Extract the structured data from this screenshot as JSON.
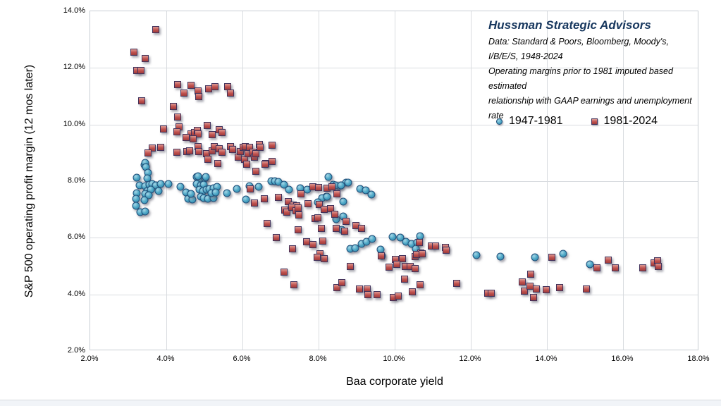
{
  "header": {
    "title": "Hussman Strategic Advisors",
    "subtitle_lines": [
      "Data: Standard & Poors, Bloomberg, Moody's, I/B/E/S, 1948-2024",
      "Operating margins prior to 1981 imputed based estimated",
      "relationship with GAAP earnings and unemployment rate"
    ],
    "title_color": "#17375e"
  },
  "legend": {
    "items": [
      {
        "label": "1947-1981",
        "marker": "circle",
        "color": "#4da7c6"
      },
      {
        "label": "1981-2024",
        "marker": "square",
        "color": "#c0504d"
      }
    ],
    "position": "inside-top"
  },
  "axes": {
    "x": {
      "label": "Baa corporate yield",
      "min": 2,
      "max": 18,
      "tick_values": [
        2,
        4,
        6,
        8,
        10,
        12,
        14,
        16,
        18
      ],
      "tick_labels": [
        "2.0%",
        "4.0%",
        "6.0%",
        "8.0%",
        "10.0%",
        "12.0%",
        "14.0%",
        "16.0%",
        "18.0%"
      ]
    },
    "y": {
      "label": "S&P 500 operating profit margin  (12 mos later)",
      "min": 2,
      "max": 14,
      "tick_values": [
        14,
        12,
        10,
        8,
        6,
        4,
        2
      ],
      "tick_labels": [
        "14.0%",
        "12.0%",
        "10.0%",
        "8.0%",
        "6.0%",
        "4.0%",
        "2.0%"
      ]
    }
  },
  "chart_data": {
    "type": "scatter",
    "title": "Hussman Strategic Advisors",
    "xlabel": "Baa corporate yield",
    "ylabel": "S&P 500 operating profit margin  (12 mos later)",
    "xlim": [
      2,
      18
    ],
    "ylim": [
      2,
      14
    ],
    "grid": true,
    "units": "percent",
    "series": [
      {
        "name": "1947-1981",
        "marker": "circle",
        "color": "#4da7c6",
        "points": [
          [
            3.42,
            8.57
          ],
          [
            3.45,
            8.65
          ],
          [
            3.47,
            8.49
          ],
          [
            3.51,
            8.29
          ],
          [
            3.22,
            8.13
          ],
          [
            3.5,
            8.11
          ],
          [
            3.3,
            7.85
          ],
          [
            3.45,
            7.83
          ],
          [
            3.56,
            7.87
          ],
          [
            3.63,
            7.9
          ],
          [
            3.73,
            7.85
          ],
          [
            3.85,
            7.91
          ],
          [
            4.06,
            7.89
          ],
          [
            3.5,
            7.66
          ],
          [
            3.59,
            7.69
          ],
          [
            3.79,
            7.66
          ],
          [
            3.22,
            7.57
          ],
          [
            3.45,
            7.54
          ],
          [
            3.53,
            7.5
          ],
          [
            3.21,
            7.37
          ],
          [
            3.43,
            7.33
          ],
          [
            3.2,
            7.14
          ],
          [
            3.32,
            6.9
          ],
          [
            3.45,
            6.92
          ],
          [
            4.37,
            7.81
          ],
          [
            4.52,
            7.6
          ],
          [
            4.57,
            7.37
          ],
          [
            4.68,
            7.36
          ],
          [
            4.65,
            7.54
          ],
          [
            4.79,
            8.14
          ],
          [
            4.87,
            8.06
          ],
          [
            5.01,
            8.09
          ],
          [
            4.84,
            8.18
          ],
          [
            5.04,
            8.14
          ],
          [
            4.8,
            7.91
          ],
          [
            4.9,
            7.85
          ],
          [
            4.98,
            7.87
          ],
          [
            4.87,
            7.7
          ],
          [
            4.96,
            7.66
          ],
          [
            5.05,
            7.69
          ],
          [
            5.13,
            7.72
          ],
          [
            5.24,
            7.75
          ],
          [
            5.33,
            7.79
          ],
          [
            4.9,
            7.45
          ],
          [
            4.99,
            7.4
          ],
          [
            5.1,
            7.37
          ],
          [
            5.24,
            7.4
          ],
          [
            5.18,
            7.58
          ],
          [
            5.29,
            7.6
          ],
          [
            5.6,
            7.58
          ],
          [
            5.86,
            7.72
          ],
          [
            6.09,
            7.35
          ],
          [
            6.19,
            7.83
          ],
          [
            6.42,
            7.8
          ],
          [
            6.75,
            8.0
          ],
          [
            6.85,
            8.01
          ],
          [
            6.95,
            7.98
          ],
          [
            7.09,
            7.87
          ],
          [
            7.22,
            7.71
          ],
          [
            7.52,
            7.76
          ],
          [
            7.71,
            7.69
          ],
          [
            8.25,
            8.15
          ],
          [
            8.39,
            7.87
          ],
          [
            8.54,
            7.82
          ],
          [
            8.73,
            7.96
          ],
          [
            8.45,
            7.85
          ],
          [
            8.6,
            7.85
          ],
          [
            8.78,
            7.95
          ],
          [
            9.1,
            7.73
          ],
          [
            9.24,
            7.67
          ],
          [
            9.38,
            7.52
          ],
          [
            8.2,
            7.44
          ],
          [
            8.09,
            7.41
          ],
          [
            8.23,
            7.45
          ],
          [
            7.99,
            7.25
          ],
          [
            8.65,
            7.28
          ],
          [
            8.64,
            6.75
          ],
          [
            8.47,
            6.65
          ],
          [
            8.62,
            6.28
          ],
          [
            8.83,
            5.62
          ],
          [
            8.97,
            5.64
          ],
          [
            9.13,
            5.78
          ],
          [
            9.26,
            5.85
          ],
          [
            9.4,
            5.95
          ],
          [
            9.63,
            5.58
          ],
          [
            9.66,
            5.37
          ],
          [
            9.94,
            6.03
          ],
          [
            10.15,
            6.01
          ],
          [
            10.3,
            5.85
          ],
          [
            10.44,
            5.79
          ],
          [
            10.59,
            5.83
          ],
          [
            10.66,
            6.07
          ],
          [
            10.55,
            5.6
          ],
          [
            12.14,
            5.39
          ],
          [
            12.78,
            5.33
          ],
          [
            13.69,
            5.3
          ],
          [
            14.42,
            5.44
          ],
          [
            15.13,
            5.06
          ]
        ]
      },
      {
        "name": "1981-2024",
        "marker": "square",
        "color": "#c0504d",
        "points": [
          [
            3.73,
            13.35
          ],
          [
            3.15,
            12.56
          ],
          [
            3.45,
            12.33
          ],
          [
            3.23,
            11.9
          ],
          [
            3.33,
            11.9
          ],
          [
            3.35,
            10.83
          ],
          [
            4.29,
            11.4
          ],
          [
            4.64,
            11.38
          ],
          [
            4.47,
            11.11
          ],
          [
            4.84,
            11.19
          ],
          [
            4.85,
            10.99
          ],
          [
            5.12,
            11.25
          ],
          [
            5.27,
            11.34
          ],
          [
            5.61,
            11.33
          ],
          [
            5.68,
            11.1
          ],
          [
            4.19,
            10.64
          ],
          [
            4.29,
            10.26
          ],
          [
            3.92,
            9.85
          ],
          [
            4.34,
            9.92
          ],
          [
            4.28,
            9.75
          ],
          [
            4.65,
            9.67
          ],
          [
            4.74,
            9.72
          ],
          [
            4.82,
            9.8
          ],
          [
            4.84,
            9.67
          ],
          [
            5.07,
            9.97
          ],
          [
            5.21,
            9.65
          ],
          [
            5.38,
            9.81
          ],
          [
            5.46,
            9.72
          ],
          [
            4.7,
            9.5
          ],
          [
            4.51,
            9.54
          ],
          [
            3.63,
            9.16
          ],
          [
            3.86,
            9.2
          ],
          [
            3.51,
            8.99
          ],
          [
            4.27,
            9.02
          ],
          [
            4.54,
            9.04
          ],
          [
            4.61,
            9.07
          ],
          [
            4.84,
            9.23
          ],
          [
            4.85,
            9.04
          ],
          [
            5.05,
            8.96
          ],
          [
            5.1,
            8.78
          ],
          [
            5.2,
            9.07
          ],
          [
            5.26,
            9.21
          ],
          [
            5.38,
            9.14
          ],
          [
            5.46,
            9.01
          ],
          [
            5.68,
            9.21
          ],
          [
            5.74,
            9.11
          ],
          [
            5.88,
            8.85
          ],
          [
            5.95,
            9.05
          ],
          [
            6.02,
            9.19
          ],
          [
            6.06,
            8.78
          ],
          [
            6.08,
            9.21
          ],
          [
            6.14,
            8.97
          ],
          [
            6.19,
            9.2
          ],
          [
            6.27,
            9.02
          ],
          [
            6.31,
            8.84
          ],
          [
            6.36,
            8.97
          ],
          [
            6.44,
            9.3
          ],
          [
            6.47,
            9.19
          ],
          [
            6.61,
            8.61
          ],
          [
            6.77,
            8.69
          ],
          [
            6.78,
            9.26
          ],
          [
            6.36,
            8.36
          ],
          [
            5.36,
            8.63
          ],
          [
            6.11,
            8.59
          ],
          [
            6.59,
            8.59
          ],
          [
            7.54,
            7.55
          ],
          [
            7.86,
            7.8
          ],
          [
            8.0,
            7.77
          ],
          [
            8.22,
            7.76
          ],
          [
            8.35,
            7.81
          ],
          [
            8.48,
            7.54
          ],
          [
            6.21,
            7.72
          ],
          [
            6.58,
            7.37
          ],
          [
            6.31,
            7.22
          ],
          [
            6.94,
            7.43
          ],
          [
            7.21,
            7.28
          ],
          [
            7.33,
            7.15
          ],
          [
            7.43,
            7.13
          ],
          [
            7.12,
            6.98
          ],
          [
            7.17,
            6.9
          ],
          [
            7.3,
            7.07
          ],
          [
            7.4,
            6.96
          ],
          [
            7.46,
            7.05
          ],
          [
            7.73,
            7.21
          ],
          [
            8.02,
            7.19
          ],
          [
            8.14,
            7.0
          ],
          [
            8.32,
            7.04
          ],
          [
            6.64,
            6.51
          ],
          [
            6.89,
            6.01
          ],
          [
            7.46,
            6.28
          ],
          [
            7.48,
            6.8
          ],
          [
            7.91,
            6.69
          ],
          [
            7.98,
            6.71
          ],
          [
            8.42,
            6.82
          ],
          [
            8.72,
            6.57
          ],
          [
            8.99,
            6.42
          ],
          [
            9.13,
            6.32
          ],
          [
            8.07,
            6.32
          ],
          [
            8.47,
            6.32
          ],
          [
            8.68,
            6.22
          ],
          [
            7.68,
            5.85
          ],
          [
            7.86,
            5.75
          ],
          [
            8.11,
            5.89
          ],
          [
            8.03,
            5.43
          ],
          [
            8.14,
            5.25
          ],
          [
            7.97,
            5.31
          ],
          [
            7.31,
            5.6
          ],
          [
            10.65,
            5.83
          ],
          [
            10.97,
            5.7
          ],
          [
            11.07,
            5.72
          ],
          [
            11.33,
            5.67
          ],
          [
            11.35,
            5.56
          ],
          [
            10.02,
            5.23
          ],
          [
            10.21,
            5.25
          ],
          [
            10.54,
            5.33
          ],
          [
            10.68,
            5.45
          ],
          [
            9.65,
            5.37
          ],
          [
            9.85,
            4.96
          ],
          [
            8.84,
            4.98
          ],
          [
            10.05,
            5.06
          ],
          [
            10.27,
            4.98
          ],
          [
            10.4,
            4.98
          ],
          [
            10.53,
            4.92
          ],
          [
            10.58,
            5.41
          ],
          [
            10.72,
            5.44
          ],
          [
            7.1,
            4.79
          ],
          [
            7.35,
            4.35
          ],
          [
            10.25,
            4.53
          ],
          [
            10.67,
            4.34
          ],
          [
            11.63,
            4.38
          ],
          [
            8.48,
            4.25
          ],
          [
            8.62,
            4.42
          ],
          [
            9.07,
            4.18
          ],
          [
            9.28,
            4.2
          ],
          [
            9.3,
            3.99
          ],
          [
            9.54,
            3.99
          ],
          [
            9.97,
            3.88
          ],
          [
            10.1,
            3.94
          ],
          [
            10.46,
            4.09
          ],
          [
            12.44,
            4.03
          ],
          [
            12.53,
            4.05
          ],
          [
            13.36,
            4.44
          ],
          [
            13.41,
            4.12
          ],
          [
            13.55,
            4.29
          ],
          [
            13.73,
            4.18
          ],
          [
            13.98,
            4.16
          ],
          [
            14.34,
            4.24
          ],
          [
            15.03,
            4.18
          ],
          [
            13.64,
            3.88
          ],
          [
            13.58,
            4.72
          ],
          [
            14.13,
            5.31
          ],
          [
            15.31,
            4.93
          ],
          [
            15.62,
            5.21
          ],
          [
            15.79,
            4.95
          ],
          [
            16.52,
            4.95
          ],
          [
            16.81,
            5.1
          ],
          [
            16.91,
            5.18
          ],
          [
            16.92,
            4.99
          ]
        ]
      }
    ]
  }
}
